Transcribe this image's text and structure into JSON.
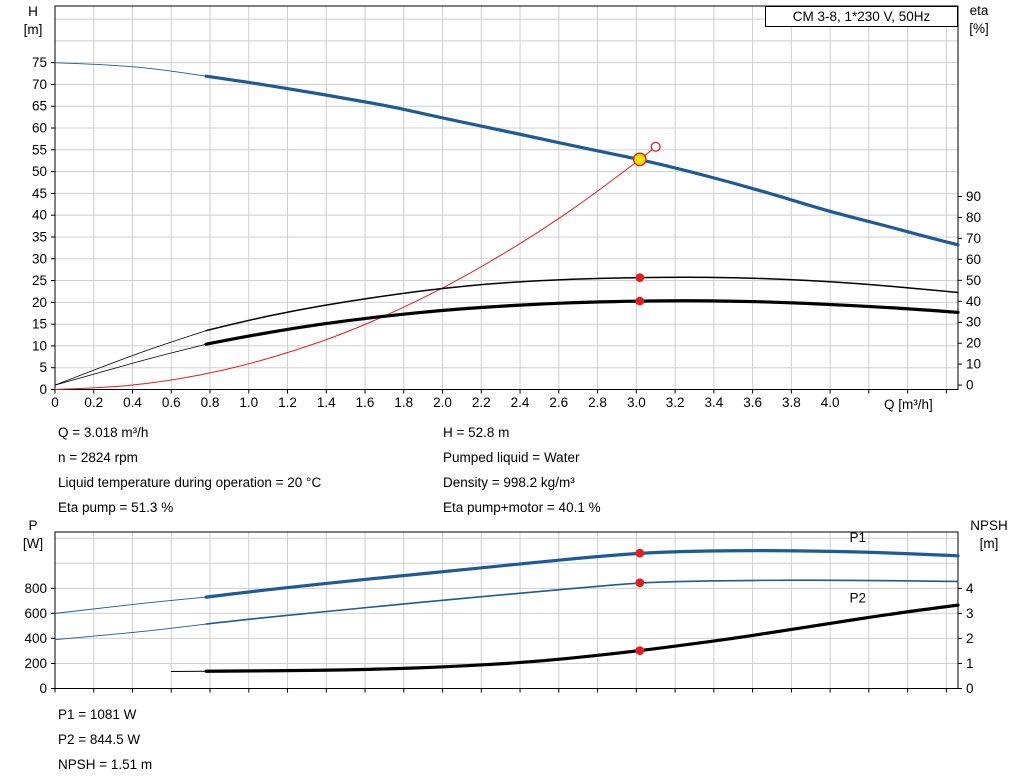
{
  "colors": {
    "curve_blue": "#1d5a96",
    "curve_red": "#e02020",
    "curve_black": "#000000",
    "duty_fill": "#ffdf00",
    "grid": "#cfcfcf"
  },
  "chart_data": [
    {
      "type": "line",
      "name": "head-efficiency-chart",
      "title": "CM 3-8, 1*230 V, 50Hz",
      "x_axis": {
        "label": "Q [m³/h]",
        "min": 0,
        "max": 4.66,
        "ticks": [
          0,
          0.2,
          0.4,
          0.6,
          0.8,
          1.0,
          1.2,
          1.4,
          1.6,
          1.8,
          2.0,
          2.2,
          2.4,
          2.6,
          2.8,
          3.0,
          3.2,
          3.4,
          3.6,
          3.8,
          4.0
        ],
        "grid": [
          0.2,
          0.4,
          0.6,
          0.8,
          1.0,
          1.2,
          1.4,
          1.6,
          1.8,
          2.0,
          2.2,
          2.4,
          2.6,
          2.8,
          3.0,
          3.2,
          3.4,
          3.6,
          3.8,
          4.0,
          4.2,
          4.4,
          4.6
        ]
      },
      "y_left": {
        "label": "H",
        "unit": "[m]",
        "min": 0,
        "max": 88,
        "ticks": [
          0,
          5,
          10,
          15,
          20,
          25,
          30,
          35,
          40,
          45,
          50,
          55,
          60,
          65,
          70,
          75
        ],
        "grid": [
          5,
          10,
          15,
          20,
          25,
          30,
          35,
          40,
          45,
          50,
          55,
          60,
          65,
          70,
          75,
          80,
          85
        ]
      },
      "y_right": {
        "label": "eta",
        "unit": "[%]",
        "min": -2.1,
        "max": 180.9,
        "ticks": [
          0,
          10,
          20,
          30,
          40,
          50,
          60,
          70,
          80,
          90
        ],
        "grid": []
      },
      "series": [
        {
          "name": "H",
          "axis": "left",
          "color": "#1d5a96",
          "thin": 0.9,
          "thick": 3.2,
          "split": 0.78,
          "points": [
            [
              0,
              75
            ],
            [
              0.25,
              74.6
            ],
            [
              0.5,
              73.7
            ],
            [
              0.78,
              71.9
            ],
            [
              1.0,
              70.5
            ],
            [
              1.25,
              68.7
            ],
            [
              1.5,
              66.8
            ],
            [
              1.75,
              64.8
            ],
            [
              2.0,
              62.3
            ],
            [
              2.25,
              60.0
            ],
            [
              2.5,
              57.6
            ],
            [
              2.75,
              55.2
            ],
            [
              3.018,
              52.8
            ],
            [
              3.25,
              50.3
            ],
            [
              3.5,
              47.4
            ],
            [
              3.75,
              44.2
            ],
            [
              4.0,
              40.8
            ],
            [
              4.25,
              38.0
            ],
            [
              4.5,
              35.0
            ],
            [
              4.66,
              33.2
            ]
          ]
        },
        {
          "name": "System curve",
          "axis": "left",
          "color": "#e02020",
          "thin": 1,
          "thick": 1,
          "split": 0,
          "points": [
            [
              0,
              0
            ],
            [
              0.25,
              0.36
            ],
            [
              0.5,
              1.45
            ],
            [
              0.75,
              3.26
            ],
            [
              1.0,
              5.8
            ],
            [
              1.25,
              9.1
            ],
            [
              1.5,
              13.0
            ],
            [
              1.75,
              17.8
            ],
            [
              2.0,
              23.2
            ],
            [
              2.25,
              29.4
            ],
            [
              2.5,
              36.2
            ],
            [
              2.75,
              43.8
            ],
            [
              3.018,
              52.8
            ],
            [
              3.1,
              55.7
            ]
          ]
        },
        {
          "name": "Eta pump",
          "axis": "right",
          "color": "#000000",
          "thin": 0.8,
          "thick": 1.5,
          "split": 0.78,
          "points": [
            [
              0,
              0
            ],
            [
              0.25,
              9
            ],
            [
              0.5,
              17.5
            ],
            [
              0.78,
              26
            ],
            [
              1.0,
              31
            ],
            [
              1.25,
              35.8
            ],
            [
              1.5,
              39.8
            ],
            [
              1.75,
              43.2
            ],
            [
              2.0,
              46.2
            ],
            [
              2.25,
              48.4
            ],
            [
              2.5,
              49.9
            ],
            [
              2.75,
              50.8
            ],
            [
              3.018,
              51.3
            ],
            [
              3.25,
              51.5
            ],
            [
              3.5,
              51.3
            ],
            [
              3.75,
              50.6
            ],
            [
              4.0,
              49.4
            ],
            [
              4.25,
              47.7
            ],
            [
              4.5,
              45.6
            ],
            [
              4.66,
              44.2
            ]
          ]
        },
        {
          "name": "Eta pump+motor",
          "axis": "right",
          "color": "#000000",
          "thin": 0.8,
          "thick": 3.2,
          "split": 0.78,
          "points": [
            [
              0,
              0
            ],
            [
              0.25,
              6.5
            ],
            [
              0.5,
              13
            ],
            [
              0.78,
              19.5
            ],
            [
              1.0,
              23.5
            ],
            [
              1.25,
              27.4
            ],
            [
              1.5,
              30.7
            ],
            [
              1.75,
              33.4
            ],
            [
              2.0,
              35.7
            ],
            [
              2.25,
              37.4
            ],
            [
              2.5,
              38.7
            ],
            [
              2.75,
              39.6
            ],
            [
              3.018,
              40.1
            ],
            [
              3.25,
              40.3
            ],
            [
              3.5,
              40.1
            ],
            [
              3.75,
              39.5
            ],
            [
              4.0,
              38.5
            ],
            [
              4.25,
              37.3
            ],
            [
              4.5,
              35.8
            ],
            [
              4.66,
              34.7
            ]
          ]
        }
      ],
      "markers": [
        {
          "q": 3.1,
          "v": 55.7,
          "axis": "left",
          "style": "open"
        },
        {
          "q": 3.018,
          "v": 52.8,
          "axis": "left",
          "style": "duty"
        },
        {
          "q": 3.018,
          "v": 51.3,
          "axis": "right",
          "style": "dot"
        },
        {
          "q": 3.018,
          "v": 40.1,
          "axis": "right",
          "style": "dot"
        }
      ]
    },
    {
      "type": "line",
      "name": "power-npsh-chart",
      "title": "",
      "x_axis": {
        "label": "",
        "min": 0,
        "max": 4.66,
        "ticks": [],
        "grid": [
          0.2,
          0.4,
          0.6,
          0.8,
          1.0,
          1.2,
          1.4,
          1.6,
          1.8,
          2.0,
          2.2,
          2.4,
          2.6,
          2.8,
          3.0,
          3.2,
          3.4,
          3.6,
          3.8,
          4.0,
          4.2,
          4.4,
          4.6
        ]
      },
      "y_left": {
        "label": "P",
        "unit": "[W]",
        "min": 0,
        "max": 1250,
        "ticks": [
          0,
          200,
          400,
          600,
          800
        ],
        "grid": [
          200,
          400,
          600,
          800,
          1000,
          1200
        ]
      },
      "y_right": {
        "label": "NPSH",
        "unit": "[m]",
        "min": 0,
        "max": 6.25,
        "ticks": [
          0,
          1,
          2,
          3,
          4
        ],
        "grid": []
      },
      "series": [
        {
          "name": "P1",
          "axis": "left",
          "color": "#1d5a96",
          "thin": 0.9,
          "thick": 3.2,
          "split": 0.78,
          "end_label": {
            "q": 4.1,
            "dy": -10
          },
          "points": [
            [
              0,
              600
            ],
            [
              0.25,
              645
            ],
            [
              0.5,
              688
            ],
            [
              0.78,
              730
            ],
            [
              1.0,
              772
            ],
            [
              1.25,
              815
            ],
            [
              1.5,
              855
            ],
            [
              1.75,
              895
            ],
            [
              2.0,
              932
            ],
            [
              2.25,
              972
            ],
            [
              2.5,
              1010
            ],
            [
              2.75,
              1048
            ],
            [
              3.018,
              1081
            ],
            [
              3.25,
              1095
            ],
            [
              3.5,
              1101
            ],
            [
              3.75,
              1101
            ],
            [
              4.0,
              1096
            ],
            [
              4.25,
              1086
            ],
            [
              4.5,
              1071
            ],
            [
              4.66,
              1060
            ]
          ]
        },
        {
          "name": "P2",
          "axis": "left",
          "color": "#1d5a96",
          "thin": 0.9,
          "thick": 1.6,
          "split": 0.78,
          "end_label": {
            "q": 4.1,
            "dy": 22
          },
          "points": [
            [
              0,
              390
            ],
            [
              0.25,
              425
            ],
            [
              0.5,
              462
            ],
            [
              0.78,
              515
            ],
            [
              1.0,
              553
            ],
            [
              1.25,
              592
            ],
            [
              1.5,
              630
            ],
            [
              1.75,
              668
            ],
            [
              2.0,
              705
            ],
            [
              2.25,
              740
            ],
            [
              2.5,
              775
            ],
            [
              2.75,
              810
            ],
            [
              3.018,
              844.5
            ],
            [
              3.25,
              856
            ],
            [
              3.5,
              862
            ],
            [
              3.75,
              865
            ],
            [
              4.0,
              865
            ],
            [
              4.25,
              862
            ],
            [
              4.5,
              858
            ],
            [
              4.66,
              855
            ]
          ]
        },
        {
          "name": "NPSH",
          "axis": "right",
          "color": "#000000",
          "thin": 1,
          "thick": 3.2,
          "split": 0.78,
          "points": [
            [
              0.6,
              0.68
            ],
            [
              0.78,
              0.69
            ],
            [
              1.0,
              0.7
            ],
            [
              1.25,
              0.72
            ],
            [
              1.5,
              0.74
            ],
            [
              1.75,
              0.79
            ],
            [
              2.0,
              0.86
            ],
            [
              2.25,
              0.96
            ],
            [
              2.5,
              1.09
            ],
            [
              2.75,
              1.28
            ],
            [
              3.018,
              1.51
            ],
            [
              3.25,
              1.74
            ],
            [
              3.5,
              2.0
            ],
            [
              3.75,
              2.3
            ],
            [
              4.0,
              2.6
            ],
            [
              4.25,
              2.9
            ],
            [
              4.5,
              3.17
            ],
            [
              4.66,
              3.33
            ]
          ]
        }
      ],
      "markers": [
        {
          "q": 3.018,
          "v": 1081,
          "axis": "left",
          "style": "dot"
        },
        {
          "q": 3.018,
          "v": 844.5,
          "axis": "left",
          "style": "dot"
        },
        {
          "q": 3.018,
          "v": 1.51,
          "axis": "right",
          "style": "dot"
        }
      ]
    }
  ],
  "duty_info": {
    "left": [
      "Q = 3.018 m³/h",
      "n = 2824 rpm",
      "Liquid temperature during operation = 20 °C",
      "Eta pump = 51.3 %"
    ],
    "right": [
      "H = 52.8 m",
      "Pumped liquid = Water",
      "Density = 998.2 kg/m³",
      "Eta pump+motor = 40.1 %"
    ]
  },
  "power_info": [
    "P1 = 1081 W",
    "P2 = 844.5 W",
    "NPSH = 1.51 m"
  ]
}
